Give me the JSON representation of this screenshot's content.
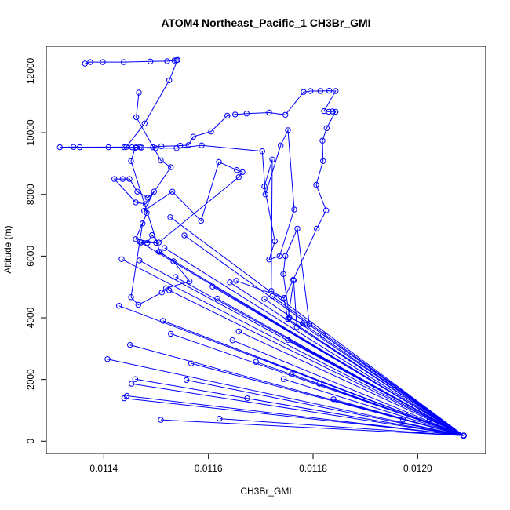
{
  "chart_data": {
    "type": "line",
    "title": "ATOM4 Northeast_Pacific_1 CH3Br_GMI",
    "xlabel": "CH3Br_GMI",
    "ylabel": "Altitude (m)",
    "xlim": [
      0.01129,
      0.01213
    ],
    "ylim": [
      -400,
      12800
    ],
    "xticks": [
      0.0114,
      0.0116,
      0.0118,
      0.012
    ],
    "xtick_labels": [
      "0.0114",
      "0.0116",
      "0.0118",
      "0.0120"
    ],
    "yticks": [
      0,
      2000,
      4000,
      6000,
      8000,
      10000,
      12000
    ],
    "ytick_labels": [
      "0",
      "2000",
      "4000",
      "6000",
      "8000",
      "10000",
      "12000"
    ],
    "grid": false,
    "color": "#0000ff",
    "marker": "open-circle",
    "series": [
      {
        "points": [
          [
            0.012088,
            180
          ],
          [
            0.011509,
            690
          ],
          [
            0.012088,
            180
          ],
          [
            0.011621,
            730
          ],
          [
            0.012088,
            180
          ],
          [
            0.011439,
            1390
          ],
          [
            0.012088,
            180
          ],
          [
            0.011444,
            1470
          ],
          [
            0.012088,
            180
          ],
          [
            0.011453,
            1860
          ],
          [
            0.012088,
            180
          ],
          [
            0.01146,
            2010
          ],
          [
            0.012088,
            180
          ],
          [
            0.011407,
            2660
          ],
          [
            0.012088,
            180
          ],
          [
            0.01145,
            3120
          ],
          [
            0.012088,
            180
          ],
          [
            0.011513,
            3900
          ],
          [
            0.012088,
            180
          ],
          [
            0.011429,
            4390
          ],
          [
            0.012088,
            180
          ],
          [
            0.011434,
            5900
          ],
          [
            0.012088,
            180
          ],
          [
            0.011468,
            5860
          ],
          [
            0.012088,
            180
          ],
          [
            0.011469,
            6460
          ],
          [
            0.012088,
            180
          ],
          [
            0.012024,
            840
          ],
          [
            0.012088,
            180
          ],
          [
            0.011972,
            700
          ],
          [
            0.012088,
            180
          ],
          [
            0.011839,
            1360
          ],
          [
            0.012088,
            180
          ],
          [
            0.011812,
            1860
          ],
          [
            0.012088,
            180
          ],
          [
            0.011819,
            3440
          ],
          [
            0.012088,
            180
          ],
          [
            0.01178,
            3820
          ],
          [
            0.012088,
            180
          ],
          [
            0.011722,
            4700
          ],
          [
            0.012088,
            180
          ],
          [
            0.011658,
            3560
          ],
          [
            0.012088,
            180
          ],
          [
            0.011617,
            4620
          ],
          [
            0.012088,
            180
          ],
          [
            0.011608,
            5010
          ],
          [
            0.012088,
            180
          ],
          [
            0.011646,
            3270
          ],
          [
            0.012088,
            180
          ],
          [
            0.011558,
            1980
          ],
          [
            0.012088,
            180
          ],
          [
            0.011567,
            2520
          ],
          [
            0.012088,
            180
          ],
          [
            0.011759,
            2170
          ],
          [
            0.012088,
            180
          ],
          [
            0.011752,
            3280
          ],
          [
            0.012088,
            180
          ],
          [
            0.011744,
            2010
          ],
          [
            0.012088,
            180
          ],
          [
            0.011674,
            1390
          ],
          [
            0.012088,
            180
          ],
          [
            0.011691,
            2570
          ],
          [
            0.012088,
            180
          ],
          [
            0.012023,
            700
          ],
          [
            0.012088,
            180
          ],
          [
            0.012062,
            370
          ],
          [
            0.012088,
            180
          ],
          [
            0.011528,
            3480
          ],
          [
            0.012088,
            180
          ],
          [
            0.011525,
            4890
          ],
          [
            0.012088,
            180
          ],
          [
            0.011641,
            5150
          ],
          [
            0.012088,
            180
          ],
          [
            0.011554,
            6670
          ],
          [
            0.012088,
            180
          ],
          [
            0.011505,
            6140
          ],
          [
            0.012088,
            180
          ],
          [
            0.011516,
            6260
          ],
          [
            0.012088,
            180
          ],
          [
            0.011537,
            5320
          ],
          [
            0.012088,
            180
          ],
          [
            0.011527,
            7260
          ],
          [
            0.012088,
            180
          ],
          [
            0.011707,
            4610
          ],
          [
            0.012088,
            180
          ],
          [
            0.011752,
            3960
          ]
        ]
      },
      {
        "points": [
          [
            0.011364,
            12240
          ],
          [
            0.011374,
            12290
          ],
          [
            0.011398,
            12290
          ],
          [
            0.011438,
            12290
          ],
          [
            0.011489,
            12310
          ],
          [
            0.011521,
            12320
          ],
          [
            0.011535,
            12340
          ],
          [
            0.011539,
            12350
          ],
          [
            0.011541,
            12360
          ],
          [
            0.011525,
            11700
          ],
          [
            0.011478,
            10300
          ],
          [
            0.011443,
            9540
          ],
          [
            0.011316,
            9530
          ],
          [
            0.011342,
            9540
          ],
          [
            0.011354,
            9530
          ],
          [
            0.011409,
            9530
          ],
          [
            0.011439,
            9530
          ],
          [
            0.011454,
            9530
          ],
          [
            0.011462,
            9530
          ],
          [
            0.011469,
            9530
          ],
          [
            0.011472,
            9520
          ],
          [
            0.011494,
            9530
          ],
          [
            0.01151,
            9560
          ],
          [
            0.011546,
            9580
          ],
          [
            0.011562,
            9600
          ],
          [
            0.011571,
            9870
          ],
          [
            0.011605,
            10040
          ],
          [
            0.011636,
            10550
          ],
          [
            0.011651,
            10590
          ],
          [
            0.011673,
            10620
          ],
          [
            0.011716,
            10650
          ],
          [
            0.011747,
            10580
          ],
          [
            0.011782,
            11320
          ],
          [
            0.011795,
            11350
          ],
          [
            0.011814,
            11350
          ],
          [
            0.011831,
            11360
          ],
          [
            0.011843,
            11350
          ],
          [
            0.011821,
            10700
          ],
          [
            0.01183,
            10680
          ],
          [
            0.011837,
            10690
          ],
          [
            0.011843,
            10680
          ],
          [
            0.011826,
            10150
          ],
          [
            0.011818,
            9740
          ],
          [
            0.011819,
            9080
          ],
          [
            0.011806,
            8310
          ],
          [
            0.011825,
            7480
          ],
          [
            0.011807,
            6890
          ],
          [
            0.011762,
            5230
          ],
          [
            0.011745,
            4640
          ],
          [
            0.011653,
            5200
          ]
        ]
      },
      {
        "points": [
          [
            0.011467,
            11300
          ],
          [
            0.011462,
            10500
          ],
          [
            0.011509,
            9100
          ],
          [
            0.011528,
            8880
          ],
          [
            0.01148,
            7690
          ],
          [
            0.011461,
            7740
          ],
          [
            0.01142,
            8500
          ],
          [
            0.011436,
            8500
          ],
          [
            0.011449,
            8500
          ],
          [
            0.011464,
            8090
          ],
          [
            0.011484,
            7890
          ],
          [
            0.011496,
            8090
          ],
          [
            0.011477,
            7470
          ],
          [
            0.011531,
            8090
          ],
          [
            0.011586,
            7140
          ],
          [
            0.01162,
            9050
          ],
          [
            0.011654,
            8790
          ],
          [
            0.011665,
            8720
          ],
          [
            0.011658,
            8560
          ],
          [
            0.011505,
            6440
          ],
          [
            0.011492,
            6680
          ],
          [
            0.011483,
            6430
          ],
          [
            0.011471,
            6440
          ],
          [
            0.0115,
            6430
          ],
          [
            0.011461,
            6550
          ],
          [
            0.011482,
            7400
          ],
          [
            0.011474,
            7060
          ],
          [
            0.011452,
            4670
          ],
          [
            0.011466,
            4420
          ],
          [
            0.011511,
            4820
          ],
          [
            0.011519,
            4960
          ],
          [
            0.011564,
            5180
          ],
          [
            0.011533,
            5830
          ],
          [
            0.011507,
            6140
          ],
          [
            0.011452,
            9080
          ],
          [
            0.01146,
            9510
          ],
          [
            0.011499,
            9500
          ],
          [
            0.011539,
            9500
          ],
          [
            0.011587,
            9590
          ],
          [
            0.011703,
            9400
          ],
          [
            0.011709,
            8000
          ],
          [
            0.011738,
            9590
          ],
          [
            0.011752,
            10080
          ],
          [
            0.011764,
            7510
          ],
          [
            0.011736,
            6000
          ],
          [
            0.011716,
            5890
          ],
          [
            0.011727,
            6480
          ],
          [
            0.011707,
            8260
          ],
          [
            0.011722,
            9130
          ],
          [
            0.01172,
            4870
          ],
          [
            0.011744,
            4640
          ],
          [
            0.011752,
            3960
          ],
          [
            0.011763,
            5210
          ],
          [
            0.011769,
            3700
          ],
          [
            0.011784,
            3790
          ],
          [
            0.011755,
            4000
          ],
          [
            0.011743,
            5420
          ],
          [
            0.011747,
            6000
          ],
          [
            0.01177,
            6890
          ],
          [
            0.011793,
            3790
          ]
        ]
      }
    ]
  }
}
